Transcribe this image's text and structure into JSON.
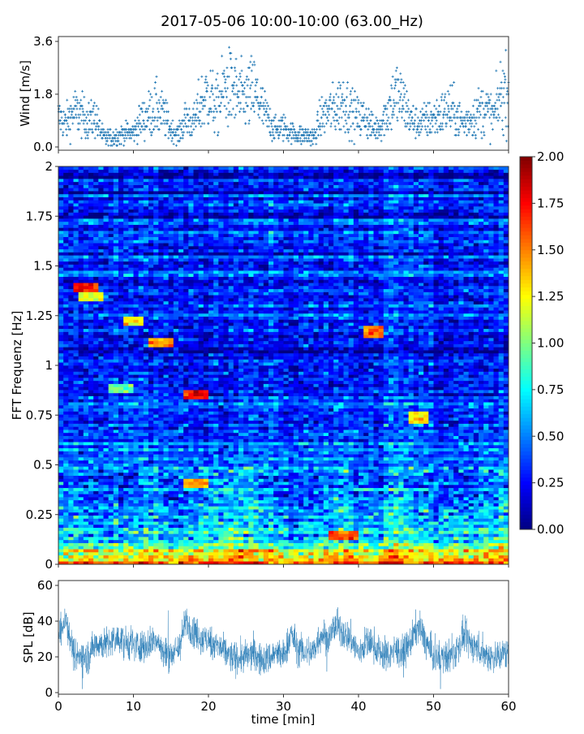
{
  "title": "2017-05-06 10:00-10:00 (63.00_Hz)",
  "chart_data": [
    {
      "type": "scatter",
      "name": "wind",
      "ylabel": "Wind [m/s]",
      "xlim": [
        0,
        60
      ],
      "ylim": [
        0,
        3.6
      ],
      "yticks": [
        "0.0",
        "1.8",
        "3.6"
      ],
      "ytick_values": [
        0,
        1.8,
        3.6
      ],
      "color": "#1f77b4",
      "marker": "+",
      "x_minutes": [
        0,
        1,
        2,
        3,
        4,
        5,
        6,
        7,
        8,
        9,
        10,
        11,
        12,
        13,
        14,
        15,
        16,
        17,
        18,
        19,
        20,
        21,
        22,
        23,
        24,
        25,
        26,
        27,
        28,
        29,
        30,
        31,
        32,
        33,
        34,
        35,
        36,
        37,
        38,
        39,
        40,
        41,
        42,
        43,
        44,
        45,
        46,
        47,
        48,
        49,
        50,
        51,
        52,
        53,
        54,
        55,
        56,
        57,
        58,
        59,
        60
      ],
      "y_mean": [
        1.0,
        0.8,
        1.2,
        1.1,
        0.9,
        1.0,
        0.3,
        0.3,
        0.4,
        0.5,
        0.5,
        0.9,
        1.1,
        1.3,
        1.1,
        0.6,
        0.4,
        1.0,
        0.8,
        1.5,
        1.8,
        1.3,
        1.9,
        2.0,
        1.7,
        1.6,
        1.9,
        1.4,
        0.9,
        0.6,
        0.7,
        0.5,
        0.4,
        0.4,
        0.3,
        1.0,
        1.2,
        1.3,
        1.6,
        1.2,
        1.0,
        1.0,
        0.6,
        0.8,
        1.3,
        1.8,
        1.5,
        0.9,
        0.8,
        0.9,
        1.0,
        1.1,
        1.3,
        1.1,
        0.8,
        1.0,
        1.2,
        1.3,
        1.0,
        1.8,
        1.9
      ]
    },
    {
      "type": "heatmap",
      "name": "spectrogram",
      "ylabel": "FFT Frequenz [Hz]",
      "xlim": [
        0,
        60
      ],
      "ylim": [
        0,
        2
      ],
      "yticks": [
        "0",
        "0.25",
        "0.5",
        "0.75",
        "1",
        "1.25",
        "1.5",
        "1.75",
        "2"
      ],
      "ytick_values": [
        0,
        0.25,
        0.5,
        0.75,
        1,
        1.25,
        1.5,
        1.75,
        2
      ],
      "colormap": "jet",
      "clim": [
        0,
        2
      ],
      "colorbar_ticks": [
        "0.00",
        "0.25",
        "0.50",
        "0.75",
        "1.00",
        "1.25",
        "1.50",
        "1.75",
        "2.00"
      ],
      "colorbar_tick_values": [
        0,
        0.25,
        0.5,
        0.75,
        1,
        1.25,
        1.5,
        1.75,
        2
      ],
      "freq_profile": {
        "freq_hz": [
          0,
          0.03,
          0.08,
          0.15,
          0.3,
          0.45,
          0.6,
          1.0,
          1.5,
          2.0
        ],
        "mean_value": [
          1.9,
          1.4,
          0.9,
          0.7,
          0.55,
          0.45,
          0.35,
          0.3,
          0.28,
          0.3
        ]
      },
      "hot_spots": [
        {
          "t": [
            2,
            5
          ],
          "f": 1.39,
          "value": 1.7
        },
        {
          "t": [
            3,
            6
          ],
          "f": 1.35,
          "value": 1.2
        },
        {
          "t": [
            9,
            11
          ],
          "f": 1.22,
          "value": 1.3
        },
        {
          "t": [
            12,
            15
          ],
          "f": 1.12,
          "value": 1.5
        },
        {
          "t": [
            17,
            20
          ],
          "f": 0.85,
          "value": 1.7
        },
        {
          "t": [
            41,
            43
          ],
          "f": 1.17,
          "value": 1.5
        },
        {
          "t": [
            7,
            10
          ],
          "f": 0.88,
          "value": 1.0
        },
        {
          "t": [
            36,
            40
          ],
          "f": 0.15,
          "value": 1.6
        },
        {
          "t": [
            17,
            20
          ],
          "f": 0.41,
          "value": 1.4
        },
        {
          "t": [
            47,
            49
          ],
          "f": 0.74,
          "value": 1.3
        }
      ]
    },
    {
      "type": "line",
      "name": "spl",
      "ylabel": "SPL [dB]",
      "xlabel": "time [min]",
      "xlim": [
        0,
        60
      ],
      "ylim": [
        0,
        62
      ],
      "xticks": [
        "0",
        "10",
        "20",
        "30",
        "40",
        "50",
        "60"
      ],
      "xtick_values": [
        0,
        10,
        20,
        30,
        40,
        50,
        60
      ],
      "yticks": [
        "0",
        "20",
        "40",
        "60"
      ],
      "ytick_values": [
        0,
        20,
        40,
        60
      ],
      "color": "#1f77b4",
      "x_minutes": [
        0,
        1,
        2,
        3,
        4,
        5,
        6,
        7,
        8,
        9,
        10,
        11,
        12,
        13,
        14,
        15,
        16,
        17,
        18,
        19,
        20,
        21,
        22,
        23,
        24,
        25,
        26,
        27,
        28,
        29,
        30,
        31,
        32,
        33,
        34,
        35,
        36,
        37,
        38,
        39,
        40,
        41,
        42,
        43,
        44,
        45,
        46,
        47,
        48,
        49,
        50,
        51,
        52,
        53,
        54,
        55,
        56,
        57,
        58,
        59,
        60
      ],
      "y_mean": [
        30,
        42,
        22,
        20,
        20,
        28,
        27,
        28,
        30,
        28,
        27,
        26,
        27,
        30,
        22,
        22,
        24,
        40,
        35,
        30,
        29,
        27,
        23,
        20,
        19,
        20,
        22,
        18,
        19,
        22,
        20,
        33,
        24,
        23,
        23,
        33,
        30,
        38,
        33,
        30,
        22,
        28,
        27,
        22,
        21,
        24,
        22,
        29,
        38,
        28,
        20,
        19,
        20,
        23,
        32,
        27,
        25,
        21,
        20,
        21,
        23
      ]
    }
  ]
}
